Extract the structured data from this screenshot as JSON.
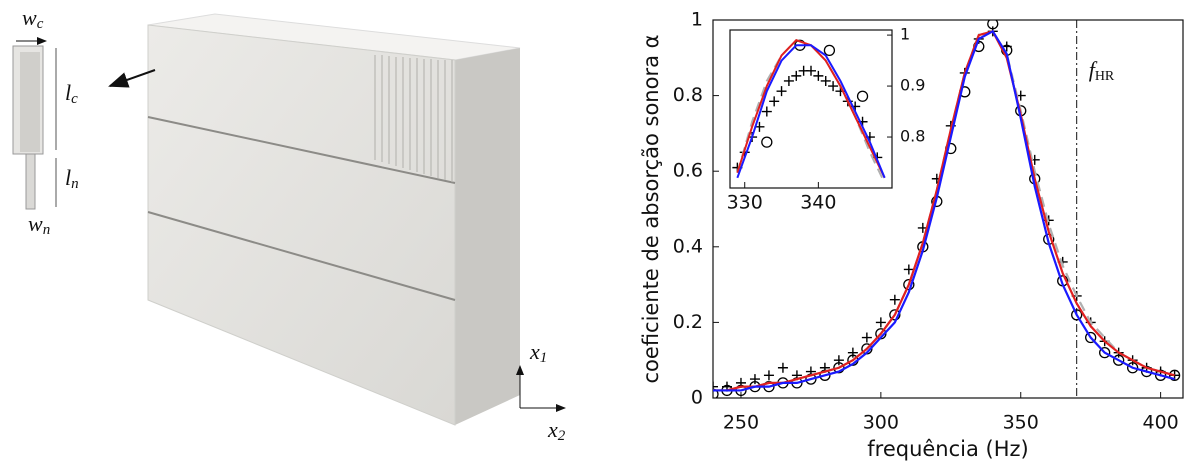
{
  "diagram": {
    "labels": {
      "wc": {
        "base": "w",
        "sub": "c"
      },
      "lc": {
        "base": "l",
        "sub": "c"
      },
      "ln": {
        "base": "l",
        "sub": "n"
      },
      "wn": {
        "base": "w",
        "sub": "n"
      },
      "x1": {
        "base": "x",
        "sub": "1"
      },
      "x2": {
        "base": "x",
        "sub": "2"
      }
    }
  },
  "chart_data": [
    {
      "type": "line",
      "xlabel": "frequência (Hz)",
      "ylabel": "coeficiente de absorção sonora α",
      "xlim": [
        240,
        408
      ],
      "ylim": [
        0,
        1
      ],
      "xticks": [
        250,
        300,
        350,
        400
      ],
      "yticks": [
        0,
        0.2,
        0.4,
        0.6,
        0.8,
        1
      ],
      "annotation": {
        "x": 370,
        "base": "f",
        "sub": "HR"
      },
      "series": [
        {
          "marker": "circle",
          "color": "#000000",
          "x": [
            240,
            245,
            250,
            255,
            260,
            265,
            270,
            275,
            280,
            285,
            290,
            295,
            300,
            305,
            310,
            315,
            320,
            325,
            330,
            335,
            340,
            345,
            350,
            355,
            360,
            365,
            370,
            375,
            380,
            385,
            390,
            395,
            400,
            405
          ],
          "values": [
            0.01,
            0.02,
            0.02,
            0.03,
            0.03,
            0.04,
            0.04,
            0.05,
            0.06,
            0.08,
            0.1,
            0.13,
            0.17,
            0.22,
            0.3,
            0.4,
            0.52,
            0.66,
            0.81,
            0.93,
            0.99,
            0.92,
            0.76,
            0.58,
            0.42,
            0.31,
            0.22,
            0.16,
            0.12,
            0.1,
            0.08,
            0.07,
            0.06,
            0.06
          ]
        },
        {
          "marker": "plus",
          "color": "#000000",
          "x": [
            240,
            245,
            250,
            255,
            260,
            265,
            270,
            275,
            280,
            285,
            290,
            295,
            300,
            305,
            310,
            315,
            320,
            325,
            330,
            335,
            340,
            345,
            350,
            355,
            360,
            365,
            370,
            375,
            380,
            385,
            390,
            395,
            400,
            405
          ],
          "values": [
            0.03,
            0.03,
            0.04,
            0.05,
            0.06,
            0.08,
            0.06,
            0.07,
            0.08,
            0.1,
            0.12,
            0.16,
            0.2,
            0.26,
            0.34,
            0.45,
            0.58,
            0.72,
            0.86,
            0.95,
            0.97,
            0.93,
            0.8,
            0.63,
            0.47,
            0.36,
            0.27,
            0.2,
            0.15,
            0.12,
            0.1,
            0.08,
            0.07,
            0.06
          ]
        },
        {
          "marker": "line",
          "dash": true,
          "color": "#b0b0b0",
          "x": [
            240,
            245,
            250,
            255,
            260,
            265,
            270,
            275,
            280,
            285,
            290,
            295,
            300,
            305,
            310,
            315,
            320,
            325,
            330,
            335,
            340,
            345,
            350,
            355,
            360,
            365,
            370,
            375,
            380,
            385,
            390,
            395,
            400,
            405
          ],
          "values": [
            0.02,
            0.02,
            0.03,
            0.03,
            0.04,
            0.04,
            0.05,
            0.06,
            0.07,
            0.08,
            0.1,
            0.13,
            0.17,
            0.22,
            0.3,
            0.41,
            0.55,
            0.71,
            0.86,
            0.96,
            0.97,
            0.91,
            0.76,
            0.6,
            0.46,
            0.35,
            0.27,
            0.2,
            0.16,
            0.12,
            0.1,
            0.08,
            0.07,
            0.06
          ]
        },
        {
          "marker": "line",
          "color": "#e02020",
          "x": [
            240,
            245,
            250,
            255,
            260,
            265,
            270,
            275,
            280,
            285,
            290,
            295,
            300,
            305,
            310,
            315,
            320,
            325,
            330,
            335,
            340,
            345,
            350,
            355,
            360,
            365,
            370,
            375,
            380,
            385,
            390,
            395,
            400,
            405
          ],
          "values": [
            0.02,
            0.02,
            0.03,
            0.03,
            0.04,
            0.04,
            0.05,
            0.06,
            0.07,
            0.08,
            0.1,
            0.13,
            0.17,
            0.22,
            0.3,
            0.41,
            0.55,
            0.71,
            0.86,
            0.96,
            0.97,
            0.9,
            0.75,
            0.58,
            0.44,
            0.33,
            0.25,
            0.19,
            0.15,
            0.12,
            0.1,
            0.08,
            0.07,
            0.06
          ]
        },
        {
          "marker": "line",
          "color": "#1a1aff",
          "x": [
            240,
            245,
            250,
            255,
            260,
            265,
            270,
            275,
            280,
            285,
            290,
            295,
            300,
            305,
            310,
            315,
            320,
            325,
            330,
            335,
            340,
            345,
            350,
            355,
            360,
            365,
            370,
            375,
            380,
            385,
            390,
            395,
            400,
            405
          ],
          "values": [
            0.02,
            0.02,
            0.02,
            0.03,
            0.03,
            0.04,
            0.04,
            0.05,
            0.06,
            0.07,
            0.09,
            0.12,
            0.16,
            0.2,
            0.28,
            0.39,
            0.53,
            0.69,
            0.85,
            0.95,
            0.97,
            0.91,
            0.74,
            0.56,
            0.41,
            0.3,
            0.22,
            0.16,
            0.12,
            0.1,
            0.08,
            0.07,
            0.06,
            0.05
          ]
        }
      ]
    },
    {
      "type": "line",
      "xlim": [
        328,
        350
      ],
      "ylim": [
        0.7,
        1.01
      ],
      "xticks": [
        330,
        340
      ],
      "yticks": [
        0.8,
        0.9,
        1
      ],
      "series": [
        {
          "marker": "circle",
          "color": "#000000",
          "x": [
            333,
            337.5,
            341.5,
            346
          ],
          "values": [
            0.79,
            0.98,
            0.97,
            0.88
          ]
        },
        {
          "marker": "plus",
          "color": "#000000",
          "x": [
            329,
            330,
            331,
            332,
            333,
            334,
            335,
            336,
            337,
            338,
            339,
            340,
            341,
            342,
            343,
            344,
            345,
            346,
            347,
            348
          ],
          "values": [
            0.74,
            0.77,
            0.8,
            0.82,
            0.85,
            0.87,
            0.89,
            0.91,
            0.92,
            0.93,
            0.93,
            0.92,
            0.91,
            0.9,
            0.89,
            0.87,
            0.86,
            0.83,
            0.8,
            0.76
          ]
        },
        {
          "marker": "line",
          "dash": true,
          "color": "#b0b0b0",
          "x": [
            329,
            331,
            333,
            335,
            337,
            339,
            341,
            343,
            345,
            347,
            349
          ],
          "values": [
            0.73,
            0.83,
            0.91,
            0.96,
            0.99,
            0.98,
            0.95,
            0.9,
            0.84,
            0.77,
            0.71
          ]
        },
        {
          "marker": "line",
          "color": "#e02020",
          "x": [
            329,
            331,
            333,
            335,
            337,
            339,
            341,
            343,
            345,
            347,
            349
          ],
          "values": [
            0.73,
            0.82,
            0.9,
            0.96,
            0.99,
            0.98,
            0.95,
            0.9,
            0.84,
            0.78,
            0.72
          ]
        },
        {
          "marker": "line",
          "color": "#1a1aff",
          "x": [
            329,
            331,
            333,
            335,
            337,
            339,
            341,
            343,
            345,
            347,
            349
          ],
          "values": [
            0.72,
            0.8,
            0.89,
            0.95,
            0.98,
            0.98,
            0.96,
            0.91,
            0.85,
            0.79,
            0.72
          ]
        }
      ]
    }
  ]
}
